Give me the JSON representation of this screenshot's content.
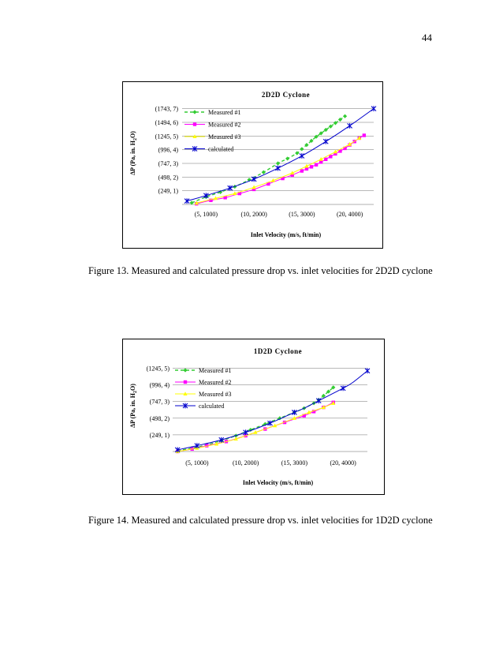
{
  "page_number": "44",
  "figure13": {
    "caption": "Figure 13. Measured and calculated pressure drop vs. inlet velocities for 2D2D cyclone"
  },
  "figure14": {
    "caption": "Figure 14. Measured and calculated pressure drop vs. inlet velocities for 1D2D cyclone"
  },
  "colors": {
    "measured1": "#33cc33",
    "measured2": "#ff00ff",
    "measured3": "#ffff00",
    "calculated": "#0000cc",
    "gridline": "#000000"
  },
  "chart_data": [
    {
      "id": "chart1",
      "type": "line",
      "title": "2D2D Cyclone",
      "xlabel": "Inlet Velocity (m/s, ft/min)",
      "ylabel": "ΔP (Pa, in. H2O)",
      "ylabel_parts": [
        "ΔP (Pa, in. H",
        "2",
        "O)"
      ],
      "xlim": [
        2.5,
        22.5
      ],
      "ylim": [
        0,
        7.5
      ],
      "x_ticks": [
        5,
        10,
        15,
        20
      ],
      "x_tick_labels": [
        "(5, 1000)",
        "(10, 2000)",
        "(15, 3000)",
        "(20, 4000)"
      ],
      "y_ticks": [
        1,
        2,
        3,
        4,
        5,
        6,
        7
      ],
      "y_tick_labels": [
        "(249, 1)",
        "(498, 2)",
        "(747, 3)",
        "(996, 4)",
        "(1245, 5)",
        "(1494, 6)",
        "(1743, 7)"
      ],
      "grid": true,
      "legend": "top-left",
      "series": [
        {
          "name": "Measured #1",
          "color_key": "measured1",
          "marker": "diamond",
          "dash": "4,3",
          "x": [
            3.5,
            5.0,
            6.5,
            8.0,
            9.5,
            11.0,
            12.5,
            13.5,
            14.5,
            15.0,
            15.5,
            16.0,
            16.5,
            17.0,
            17.5,
            18.0,
            18.5,
            19.0,
            19.5
          ],
          "y": [
            0.12,
            0.55,
            0.9,
            1.3,
            1.8,
            2.35,
            3.0,
            3.35,
            3.75,
            4.05,
            4.35,
            4.65,
            4.95,
            5.2,
            5.45,
            5.7,
            5.95,
            6.2,
            6.45
          ]
        },
        {
          "name": "Measured #2",
          "color_key": "measured2",
          "marker": "square",
          "dash": "",
          "x": [
            4.0,
            5.5,
            7.0,
            8.5,
            10.0,
            11.5,
            13.0,
            14.0,
            15.0,
            15.5,
            16.0,
            16.5,
            17.0,
            17.5,
            18.0,
            18.5,
            19.0,
            19.5,
            20.0,
            20.5,
            21.0,
            21.5
          ],
          "y": [
            0.05,
            0.3,
            0.5,
            0.8,
            1.1,
            1.5,
            1.9,
            2.15,
            2.45,
            2.6,
            2.75,
            2.9,
            3.1,
            3.3,
            3.5,
            3.7,
            3.9,
            4.1,
            4.35,
            4.6,
            4.85,
            5.05
          ]
        },
        {
          "name": "Measured #3",
          "color_key": "measured3",
          "marker": "triangle",
          "dash": "",
          "x": [
            4.0,
            6.0,
            8.0,
            10.0,
            12.0,
            14.0,
            15.5,
            17.0,
            18.5,
            20.0,
            21.0
          ],
          "y": [
            0.1,
            0.45,
            0.8,
            1.25,
            1.75,
            2.3,
            2.8,
            3.3,
            3.85,
            4.4,
            4.85
          ]
        },
        {
          "name": "calculated",
          "color_key": "calculated",
          "marker": "star",
          "dash": "",
          "x": [
            3.0,
            5.0,
            7.5,
            10.0,
            12.5,
            15.0,
            17.5,
            20.0,
            22.5
          ],
          "y": [
            0.25,
            0.65,
            1.2,
            1.85,
            2.65,
            3.55,
            4.6,
            5.75,
            7.0
          ],
          "marker_x": [
            3.0,
            5.0,
            7.5,
            10.0,
            12.5,
            15.0,
            17.5,
            20.0,
            22.5
          ]
        }
      ]
    },
    {
      "id": "chart2",
      "type": "line",
      "title": "1D2D Cyclone",
      "xlabel": "Inlet Velocity (m/s, ft/min)",
      "ylabel": "ΔP (Pa, in. H2O)",
      "ylabel_parts": [
        "ΔP (Pa, in. H",
        "2",
        "O)"
      ],
      "xlim": [
        2.5,
        22.5
      ],
      "ylim": [
        0,
        5.5
      ],
      "x_ticks": [
        5,
        10,
        15,
        20
      ],
      "x_tick_labels": [
        "(5, 1000)",
        "(10, 2000)",
        "(15, 3000)",
        "(20, 4000)"
      ],
      "y_ticks": [
        1,
        2,
        3,
        4,
        5
      ],
      "y_tick_labels": [
        "(249, 1)",
        "(498, 2)",
        "(747, 3)",
        "(996, 4)",
        "(1245, 5)"
      ],
      "grid": true,
      "legend": "top-left",
      "series": [
        {
          "name": "Measured #1",
          "color_key": "measured1",
          "marker": "diamond",
          "dash": "4,3",
          "x": [
            3.0,
            4.5,
            6.0,
            7.5,
            9.0,
            10.5,
            12.0,
            13.5,
            15.0,
            16.0,
            17.0,
            17.5,
            18.0,
            18.5,
            19.0
          ],
          "y": [
            0.05,
            0.2,
            0.4,
            0.65,
            0.95,
            1.3,
            1.65,
            2.0,
            2.35,
            2.6,
            2.9,
            3.1,
            3.35,
            3.6,
            3.85
          ]
        },
        {
          "name": "Measured #2",
          "color_key": "measured2",
          "marker": "square",
          "dash": "",
          "x": [
            3.0,
            4.5,
            6.0,
            8.0,
            10.0,
            12.0,
            14.0,
            16.0,
            17.0,
            18.0,
            19.0
          ],
          "y": [
            0.0,
            0.15,
            0.35,
            0.6,
            0.95,
            1.35,
            1.75,
            2.15,
            2.4,
            2.65,
            2.95
          ]
        },
        {
          "name": "Measured #3",
          "color_key": "measured3",
          "marker": "triangle",
          "dash": "",
          "x": [
            3.0,
            5.0,
            7.0,
            9.0,
            11.0,
            13.0,
            15.0,
            16.5,
            18.0,
            19.0
          ],
          "y": [
            0.0,
            0.2,
            0.45,
            0.75,
            1.15,
            1.55,
            2.0,
            2.35,
            2.65,
            2.9
          ]
        },
        {
          "name": "calculated",
          "color_key": "calculated",
          "marker": "star",
          "dash": "",
          "x": [
            3.0,
            5.0,
            7.5,
            10.0,
            12.5,
            15.0,
            16.0,
            17.5,
            20.0,
            21.0,
            22.5
          ],
          "y": [
            0.1,
            0.35,
            0.7,
            1.15,
            1.7,
            2.35,
            2.6,
            3.05,
            3.8,
            4.15,
            4.85
          ],
          "marker_x": [
            3.0,
            5.0,
            7.5,
            10.0,
            12.5,
            15.0,
            17.5,
            20.0,
            22.5
          ]
        }
      ]
    }
  ]
}
